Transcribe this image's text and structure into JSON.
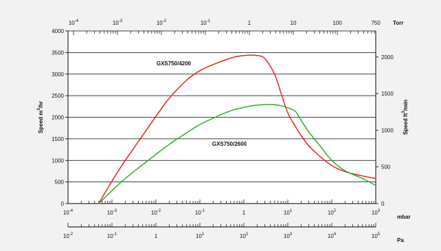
{
  "chart_data": {
    "type": "line",
    "title": "",
    "grid": true,
    "y_left": {
      "label": "Speed  m",
      "label_sup": "3",
      "label_suffix": "/hr",
      "range": [
        0,
        4000
      ],
      "ticks": [
        0,
        500,
        1000,
        1500,
        2000,
        2500,
        3000,
        3500,
        4000
      ],
      "tick_labels": [
        "0",
        "500",
        "1000",
        "1500",
        "2000",
        "2500",
        "3000",
        "3500",
        "4000"
      ]
    },
    "y_right": {
      "label": "Speed  ft",
      "label_sup": "3",
      "label_suffix": "/min",
      "range": [
        0,
        2355
      ],
      "ticks": [
        0,
        500,
        1000,
        1500,
        2000
      ],
      "tick_labels": [
        "0",
        "500",
        "1000",
        "1500",
        "2000"
      ]
    },
    "x_mbar": {
      "unit_label": "mbar",
      "scale": "log",
      "range": [
        0.0001,
        1000
      ],
      "ticks": [
        {
          "value": 0.0001,
          "base": "10",
          "exp": "-4"
        },
        {
          "value": 0.001,
          "base": "10",
          "exp": "-3"
        },
        {
          "value": 0.01,
          "base": "10",
          "exp": "-2"
        },
        {
          "value": 0.1,
          "base": "10",
          "exp": "-1"
        },
        {
          "value": 1,
          "base": "1",
          "exp": ""
        },
        {
          "value": 10,
          "base": "10",
          "exp": "1"
        },
        {
          "value": 100,
          "base": "10",
          "exp": "2"
        },
        {
          "value": 1000,
          "base": "10",
          "exp": "3"
        }
      ]
    },
    "x_torr": {
      "unit_label": "Torr",
      "scale": "log",
      "ticks": [
        {
          "value": 0.0001,
          "base": "10",
          "exp": "-4"
        },
        {
          "value": 0.001,
          "base": "10",
          "exp": "-3"
        },
        {
          "value": 0.01,
          "base": "10",
          "exp": "-2"
        },
        {
          "value": 0.1,
          "base": "10",
          "exp": "-1"
        },
        {
          "value": 1,
          "base": "1",
          "exp": ""
        },
        {
          "value": 10,
          "base": "10",
          "exp": ""
        },
        {
          "value": 100,
          "base": "100",
          "exp": ""
        },
        {
          "value": 750,
          "base": "750",
          "exp": ""
        }
      ]
    },
    "x_pa": {
      "unit_label": "Pa",
      "scale": "log",
      "ticks": [
        {
          "value": 0.01,
          "base": "10",
          "exp": "-2"
        },
        {
          "value": 0.1,
          "base": "10",
          "exp": "-1"
        },
        {
          "value": 1,
          "base": "1",
          "exp": ""
        },
        {
          "value": 10,
          "base": "10",
          "exp": "1"
        },
        {
          "value": 100,
          "base": "10",
          "exp": "2"
        },
        {
          "value": 1000,
          "base": "10",
          "exp": "3"
        },
        {
          "value": 10000,
          "base": "10",
          "exp": "4"
        },
        {
          "value": 100000,
          "base": "10",
          "exp": "5"
        }
      ]
    },
    "series": [
      {
        "name": "GXS750/4200",
        "color": "#e8211a",
        "x": [
          0.0005,
          0.001,
          0.002,
          0.005,
          0.01,
          0.02,
          0.05,
          0.1,
          0.2,
          0.5,
          1,
          2,
          3,
          5,
          7,
          10,
          15,
          20,
          30,
          50,
          100,
          200,
          500,
          1000
        ],
        "y": [
          0,
          520,
          1000,
          1580,
          2020,
          2440,
          2860,
          3080,
          3220,
          3370,
          3430,
          3430,
          3360,
          3000,
          2560,
          2100,
          1780,
          1580,
          1340,
          1120,
          880,
          740,
          640,
          580
        ]
      },
      {
        "name": "GXS750/2600",
        "color": "#2eae2e",
        "x": [
          0.0005,
          0.001,
          0.002,
          0.005,
          0.01,
          0.02,
          0.05,
          0.1,
          0.2,
          0.5,
          1,
          2,
          5,
          10,
          15,
          20,
          30,
          50,
          100,
          200,
          500,
          1000
        ],
        "y": [
          0,
          300,
          580,
          900,
          1140,
          1370,
          1640,
          1830,
          1980,
          2150,
          2230,
          2280,
          2290,
          2220,
          2130,
          1930,
          1660,
          1380,
          1000,
          760,
          580,
          420
        ]
      }
    ]
  }
}
